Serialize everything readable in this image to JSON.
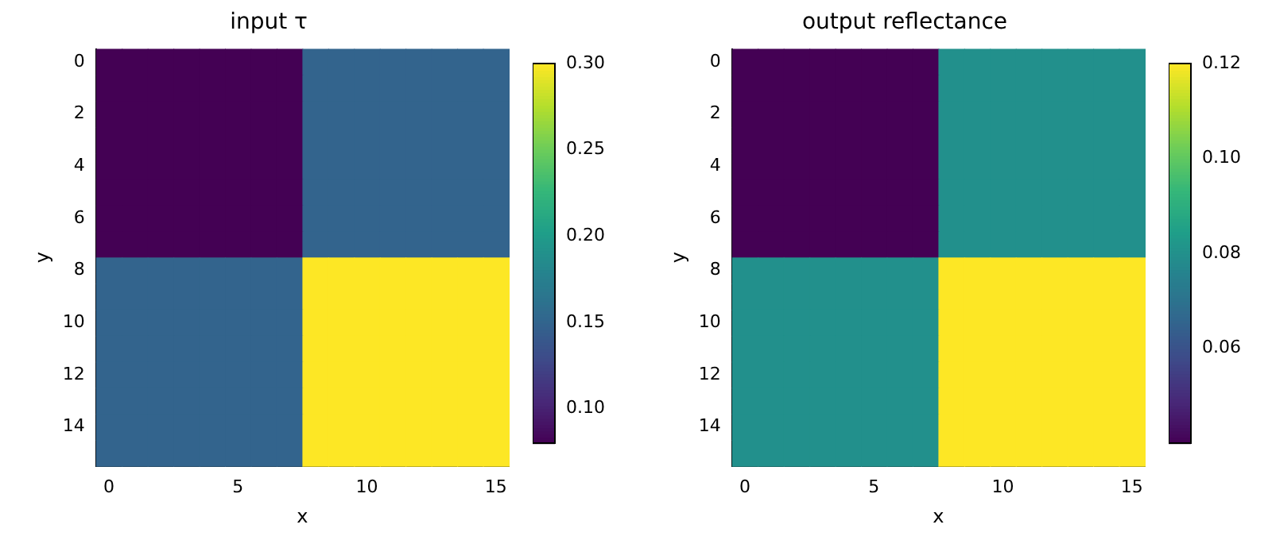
{
  "chart_data": [
    {
      "type": "heatmap",
      "title": "input τ",
      "xlabel": "x",
      "ylabel": "y",
      "xlim": [
        -0.5,
        15.5
      ],
      "xticks": [
        0,
        5,
        10,
        15
      ],
      "ylim": [
        15.5,
        -0.5
      ],
      "yticks": [
        0,
        2,
        4,
        6,
        8,
        10,
        12,
        14
      ],
      "clim": [
        0.08,
        0.3
      ],
      "cticks": [
        {
          "value": 0.1,
          "label": "0.10"
        },
        {
          "value": 0.15,
          "label": "0.15"
        },
        {
          "value": 0.2,
          "label": "0.20"
        },
        {
          "value": 0.25,
          "label": "0.25"
        },
        {
          "value": 0.3,
          "label": "0.30"
        }
      ],
      "cells": [
        [
          0.08,
          0.08,
          0.08,
          0.08,
          0.08,
          0.08,
          0.08,
          0.08,
          0.15,
          0.15,
          0.15,
          0.15,
          0.15,
          0.15,
          0.15,
          0.15
        ],
        [
          0.08,
          0.08,
          0.08,
          0.08,
          0.08,
          0.08,
          0.08,
          0.08,
          0.15,
          0.15,
          0.15,
          0.15,
          0.15,
          0.15,
          0.15,
          0.15
        ],
        [
          0.08,
          0.08,
          0.08,
          0.08,
          0.08,
          0.08,
          0.08,
          0.08,
          0.15,
          0.15,
          0.15,
          0.15,
          0.15,
          0.15,
          0.15,
          0.15
        ],
        [
          0.08,
          0.08,
          0.08,
          0.08,
          0.08,
          0.08,
          0.08,
          0.08,
          0.15,
          0.15,
          0.15,
          0.15,
          0.15,
          0.15,
          0.15,
          0.15
        ],
        [
          0.08,
          0.08,
          0.08,
          0.08,
          0.08,
          0.08,
          0.08,
          0.08,
          0.15,
          0.15,
          0.15,
          0.15,
          0.15,
          0.15,
          0.15,
          0.15
        ],
        [
          0.08,
          0.08,
          0.08,
          0.08,
          0.08,
          0.08,
          0.08,
          0.08,
          0.15,
          0.15,
          0.15,
          0.15,
          0.15,
          0.15,
          0.15,
          0.15
        ],
        [
          0.08,
          0.08,
          0.08,
          0.08,
          0.08,
          0.08,
          0.08,
          0.08,
          0.15,
          0.15,
          0.15,
          0.15,
          0.15,
          0.15,
          0.15,
          0.15
        ],
        [
          0.08,
          0.08,
          0.08,
          0.08,
          0.08,
          0.08,
          0.08,
          0.08,
          0.15,
          0.15,
          0.15,
          0.15,
          0.15,
          0.15,
          0.15,
          0.15
        ],
        [
          0.15,
          0.15,
          0.15,
          0.15,
          0.15,
          0.15,
          0.15,
          0.15,
          0.3,
          0.3,
          0.3,
          0.3,
          0.3,
          0.3,
          0.3,
          0.3
        ],
        [
          0.15,
          0.15,
          0.15,
          0.15,
          0.15,
          0.15,
          0.15,
          0.15,
          0.3,
          0.3,
          0.3,
          0.3,
          0.3,
          0.3,
          0.3,
          0.3
        ],
        [
          0.15,
          0.15,
          0.15,
          0.15,
          0.15,
          0.15,
          0.15,
          0.15,
          0.3,
          0.3,
          0.3,
          0.3,
          0.3,
          0.3,
          0.3,
          0.3
        ],
        [
          0.15,
          0.15,
          0.15,
          0.15,
          0.15,
          0.15,
          0.15,
          0.15,
          0.3,
          0.3,
          0.3,
          0.3,
          0.3,
          0.3,
          0.3,
          0.3
        ],
        [
          0.15,
          0.15,
          0.15,
          0.15,
          0.15,
          0.15,
          0.15,
          0.15,
          0.3,
          0.3,
          0.3,
          0.3,
          0.3,
          0.3,
          0.3,
          0.3
        ],
        [
          0.15,
          0.15,
          0.15,
          0.15,
          0.15,
          0.15,
          0.15,
          0.15,
          0.3,
          0.3,
          0.3,
          0.3,
          0.3,
          0.3,
          0.3,
          0.3
        ],
        [
          0.15,
          0.15,
          0.15,
          0.15,
          0.15,
          0.15,
          0.15,
          0.15,
          0.3,
          0.3,
          0.3,
          0.3,
          0.3,
          0.3,
          0.3,
          0.3
        ],
        [
          0.15,
          0.15,
          0.15,
          0.15,
          0.15,
          0.15,
          0.15,
          0.15,
          0.3,
          0.3,
          0.3,
          0.3,
          0.3,
          0.3,
          0.3,
          0.3
        ]
      ]
    },
    {
      "type": "heatmap",
      "title": "output reflectance",
      "xlabel": "x",
      "ylabel": "y",
      "xlim": [
        -0.5,
        15.5
      ],
      "xticks": [
        0,
        5,
        10,
        15
      ],
      "ylim": [
        15.5,
        -0.5
      ],
      "yticks": [
        0,
        2,
        4,
        6,
        8,
        10,
        12,
        14
      ],
      "clim": [
        0.04,
        0.12
      ],
      "cticks": [
        {
          "value": 0.06,
          "label": "0.06"
        },
        {
          "value": 0.08,
          "label": "0.08"
        },
        {
          "value": 0.1,
          "label": "0.10"
        },
        {
          "value": 0.12,
          "label": "0.12"
        }
      ],
      "cells": [
        [
          0.04,
          0.04,
          0.04,
          0.04,
          0.04,
          0.04,
          0.04,
          0.04,
          0.08,
          0.08,
          0.08,
          0.08,
          0.08,
          0.08,
          0.08,
          0.08
        ],
        [
          0.04,
          0.04,
          0.04,
          0.04,
          0.04,
          0.04,
          0.04,
          0.04,
          0.08,
          0.08,
          0.08,
          0.08,
          0.08,
          0.08,
          0.08,
          0.08
        ],
        [
          0.04,
          0.04,
          0.04,
          0.04,
          0.04,
          0.04,
          0.04,
          0.04,
          0.08,
          0.08,
          0.08,
          0.08,
          0.08,
          0.08,
          0.08,
          0.08
        ],
        [
          0.04,
          0.04,
          0.04,
          0.04,
          0.04,
          0.04,
          0.04,
          0.04,
          0.08,
          0.08,
          0.08,
          0.08,
          0.08,
          0.08,
          0.08,
          0.08
        ],
        [
          0.04,
          0.04,
          0.04,
          0.04,
          0.04,
          0.04,
          0.04,
          0.04,
          0.08,
          0.08,
          0.08,
          0.08,
          0.08,
          0.08,
          0.08,
          0.08
        ],
        [
          0.04,
          0.04,
          0.04,
          0.04,
          0.04,
          0.04,
          0.04,
          0.04,
          0.08,
          0.08,
          0.08,
          0.08,
          0.08,
          0.08,
          0.08,
          0.08
        ],
        [
          0.04,
          0.04,
          0.04,
          0.04,
          0.04,
          0.04,
          0.04,
          0.04,
          0.08,
          0.08,
          0.08,
          0.08,
          0.08,
          0.08,
          0.08,
          0.08
        ],
        [
          0.04,
          0.04,
          0.04,
          0.04,
          0.04,
          0.04,
          0.04,
          0.04,
          0.08,
          0.08,
          0.08,
          0.08,
          0.08,
          0.08,
          0.08,
          0.08
        ],
        [
          0.08,
          0.08,
          0.08,
          0.08,
          0.08,
          0.08,
          0.08,
          0.08,
          0.12,
          0.12,
          0.12,
          0.12,
          0.12,
          0.12,
          0.12,
          0.12
        ],
        [
          0.08,
          0.08,
          0.08,
          0.08,
          0.08,
          0.08,
          0.08,
          0.08,
          0.12,
          0.12,
          0.12,
          0.12,
          0.12,
          0.12,
          0.12,
          0.12
        ],
        [
          0.08,
          0.08,
          0.08,
          0.08,
          0.08,
          0.08,
          0.08,
          0.08,
          0.12,
          0.12,
          0.12,
          0.12,
          0.12,
          0.12,
          0.12,
          0.12
        ],
        [
          0.08,
          0.08,
          0.08,
          0.08,
          0.08,
          0.08,
          0.08,
          0.08,
          0.12,
          0.12,
          0.12,
          0.12,
          0.12,
          0.12,
          0.12,
          0.12
        ],
        [
          0.08,
          0.08,
          0.08,
          0.08,
          0.08,
          0.08,
          0.08,
          0.08,
          0.12,
          0.12,
          0.12,
          0.12,
          0.12,
          0.12,
          0.12,
          0.12
        ],
        [
          0.08,
          0.08,
          0.08,
          0.08,
          0.08,
          0.08,
          0.08,
          0.08,
          0.12,
          0.12,
          0.12,
          0.12,
          0.12,
          0.12,
          0.12,
          0.12
        ],
        [
          0.08,
          0.08,
          0.08,
          0.08,
          0.08,
          0.08,
          0.08,
          0.08,
          0.12,
          0.12,
          0.12,
          0.12,
          0.12,
          0.12,
          0.12,
          0.12
        ],
        [
          0.08,
          0.08,
          0.08,
          0.08,
          0.08,
          0.08,
          0.08,
          0.08,
          0.12,
          0.12,
          0.12,
          0.12,
          0.12,
          0.12,
          0.12,
          0.12
        ]
      ]
    }
  ]
}
